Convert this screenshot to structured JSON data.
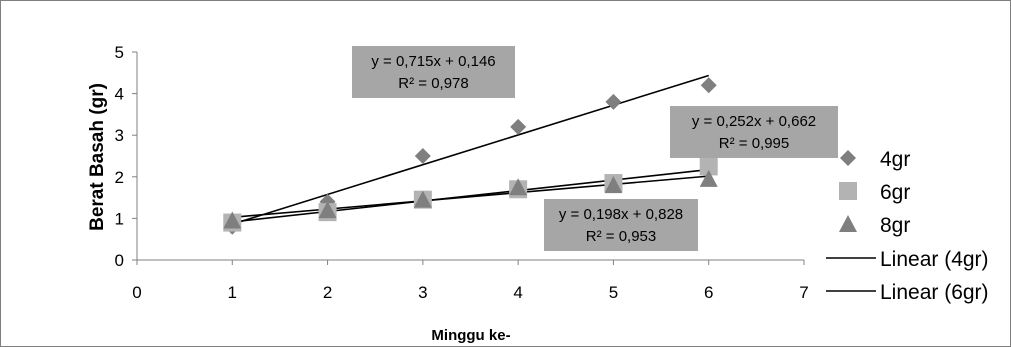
{
  "chart_data": {
    "type": "scatter",
    "title": "",
    "xlabel": "Minggu ke-",
    "ylabel": "Berat Basah (gr)",
    "xlim": [
      0,
      7
    ],
    "ylim": [
      0,
      5
    ],
    "x_ticks": [
      "0",
      "1",
      "2",
      "3",
      "4",
      "5",
      "6",
      "7"
    ],
    "y_ticks": [
      "0",
      "1",
      "2",
      "3",
      "4",
      "5"
    ],
    "grid": false,
    "legend_position": "right",
    "series": [
      {
        "name": "4gr",
        "marker": "diamond",
        "color": "#7f7f7f",
        "x": [
          1,
          2,
          3,
          4,
          5,
          6
        ],
        "y": [
          0.8,
          1.4,
          2.5,
          3.2,
          3.8,
          4.2
        ]
      },
      {
        "name": "6gr",
        "marker": "square",
        "color": "#b3b3b3",
        "x": [
          1,
          2,
          3,
          4,
          5,
          6
        ],
        "y": [
          0.9,
          1.15,
          1.45,
          1.7,
          1.85,
          2.25
        ]
      },
      {
        "name": "8gr",
        "marker": "triangle",
        "color": "#7f7f7f",
        "x": [
          1,
          2,
          3,
          4,
          5,
          6
        ],
        "y": [
          0.95,
          1.2,
          1.45,
          1.75,
          1.8,
          1.95
        ]
      }
    ],
    "trendlines": [
      {
        "name": "Linear (4gr)",
        "slope": 0.715,
        "intercept": 0.146,
        "color": "#000000",
        "equation": "y = 0,715x + 0,146",
        "r2": "R² = 0,978"
      },
      {
        "name": "Linear (6gr)",
        "slope": 0.252,
        "intercept": 0.662,
        "color": "#000000",
        "equation": "y = 0,252x + 0,662",
        "r2": "R² = 0,995"
      },
      {
        "name": "",
        "slope": 0.198,
        "intercept": 0.828,
        "color": "#000000",
        "equation": "y = 0,198x + 0,828",
        "r2": "R² = 0,953"
      }
    ],
    "label_box_color": "#a6a6a6"
  }
}
